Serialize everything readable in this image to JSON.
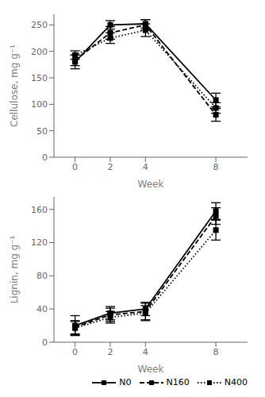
{
  "chart_data": [
    {
      "type": "line",
      "x": [
        0,
        2,
        4,
        8
      ],
      "xlabel": "Week",
      "ylabel": "Cellulose, mg g⁻¹",
      "xlim": [
        -1.2,
        9.8
      ],
      "xticks": [
        0,
        2,
        4,
        8
      ],
      "ylim": [
        0,
        270
      ],
      "yticks": [
        0,
        50,
        100,
        150,
        200,
        250
      ],
      "grid": false,
      "series": [
        {
          "name": "N0",
          "color": "#000000",
          "line_style": "solid",
          "marker": "square",
          "values": [
            180,
            250,
            252,
            108
          ],
          "err": [
            13,
            8,
            8,
            13
          ]
        },
        {
          "name": "N160",
          "color": "#000000",
          "line_style": "dashed",
          "marker": "square",
          "values": [
            183,
            235,
            250,
            80
          ],
          "err": [
            10,
            12,
            10,
            12
          ]
        },
        {
          "name": "N400",
          "color": "#000000",
          "line_style": "dotted",
          "marker": "square",
          "values": [
            193,
            225,
            240,
            93
          ],
          "err": [
            8,
            10,
            12,
            10
          ]
        }
      ]
    },
    {
      "type": "line",
      "x": [
        0,
        2,
        4,
        8
      ],
      "xlabel": "Week",
      "ylabel": "Lignin, mg g⁻¹",
      "xlim": [
        -1.2,
        9.8
      ],
      "xticks": [
        0,
        2,
        4,
        8
      ],
      "ylim": [
        0,
        175
      ],
      "yticks": [
        0,
        40,
        80,
        120,
        160
      ],
      "grid": false,
      "legend": "lower right",
      "series": [
        {
          "name": "N0",
          "color": "#000000",
          "line_style": "solid",
          "marker": "square",
          "values": [
            20,
            35,
            40,
            158
          ],
          "err": [
            12,
            8,
            8,
            10
          ]
        },
        {
          "name": "N160",
          "color": "#000000",
          "line_style": "dashed",
          "marker": "square",
          "values": [
            18,
            33,
            37,
            152
          ],
          "err": [
            8,
            8,
            10,
            10
          ]
        },
        {
          "name": "N400",
          "color": "#000000",
          "line_style": "dotted",
          "marker": "square",
          "values": [
            17,
            30,
            35,
            135
          ],
          "err": [
            8,
            7,
            9,
            12
          ]
        }
      ]
    }
  ]
}
